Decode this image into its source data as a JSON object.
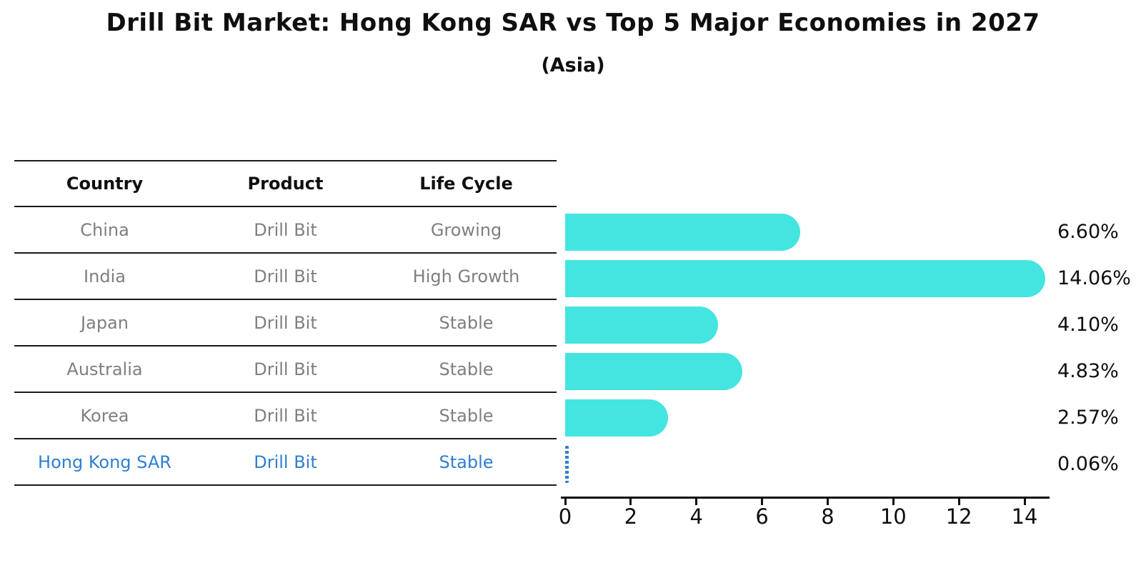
{
  "title": "Drill Bit Market: Hong Kong SAR vs Top 5 Major Economies in 2027",
  "subtitle": "(Asia)",
  "table": {
    "headers": [
      "Country",
      "Product",
      "Life Cycle"
    ],
    "rows": [
      {
        "country": "China",
        "product": "Drill Bit",
        "life_cycle": "Growing"
      },
      {
        "country": "India",
        "product": "Drill Bit",
        "life_cycle": "High Growth"
      },
      {
        "country": "Japan",
        "product": "Drill Bit",
        "life_cycle": "Stable"
      },
      {
        "country": "Australia",
        "product": "Drill Bit",
        "life_cycle": "Stable"
      },
      {
        "country": "Korea",
        "product": "Drill Bit",
        "life_cycle": "Stable"
      },
      {
        "country": "Hong Kong SAR",
        "product": "Drill Bit",
        "life_cycle": "Stable"
      }
    ],
    "highlight_row": 5
  },
  "chart_data": {
    "type": "bar",
    "orientation": "horizontal",
    "title": "Drill Bit Market: Hong Kong SAR vs Top 5 Major Economies in 2027",
    "subtitle": "(Asia)",
    "categories": [
      "China",
      "India",
      "Japan",
      "Australia",
      "Korea",
      "Hong Kong SAR"
    ],
    "values": [
      6.6,
      14.06,
      4.1,
      4.83,
      2.57,
      0.06
    ],
    "value_labels": [
      "6.60%",
      "14.06%",
      "4.10%",
      "4.83%",
      "2.57%",
      "0.06%"
    ],
    "x_ticks": [
      0,
      2,
      4,
      6,
      8,
      10,
      12,
      14
    ],
    "xlim": [
      0,
      14.75
    ],
    "highlight_index": 5,
    "grid": false,
    "legend": false,
    "xlabel": "",
    "ylabel": ""
  },
  "colors": {
    "cyan": "#44E5E0",
    "accent": "#2E7FD0",
    "muted": "#7f7f7f",
    "heading": "#0f0f0f",
    "line": "#1a1a1a"
  }
}
